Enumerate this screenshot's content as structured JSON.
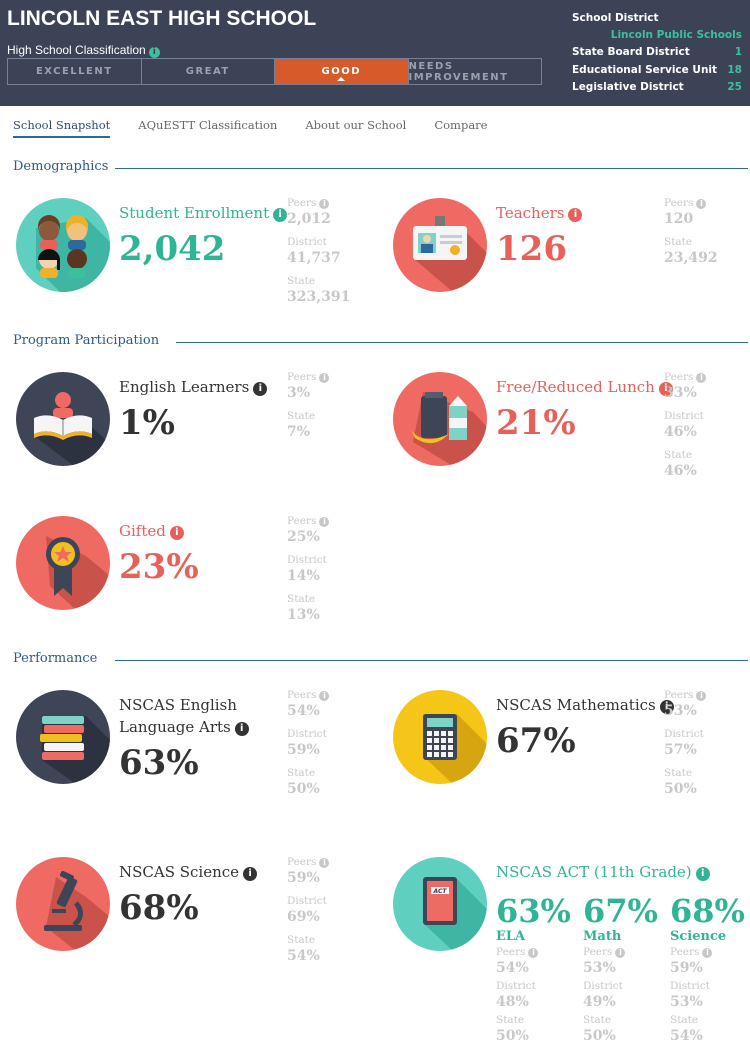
{
  "header": {
    "school_name": "LINCOLN EAST HIGH SCHOOL",
    "classification_label": "High School Classification",
    "classification_levels": [
      "EXCELLENT",
      "GREAT",
      "GOOD",
      "NEEDS IMPROVEMENT"
    ],
    "classification_selected": "GOOD",
    "district_info": [
      {
        "label": "School District",
        "value": ""
      },
      {
        "label": "",
        "value": "Lincoln Public Schools"
      },
      {
        "label": "State Board District",
        "value": "1"
      },
      {
        "label": "Educational Service Unit",
        "value": "18"
      },
      {
        "label": "Legislative District",
        "value": "25"
      }
    ]
  },
  "tabs": [
    "School Snapshot",
    "AQuESTT Classification",
    "About our School",
    "Compare"
  ],
  "active_tab": "School Snapshot",
  "sections": {
    "demographics": "Demographics",
    "program": "Program Participation",
    "performance": "Performance"
  },
  "info_glyph": "i",
  "colors": {
    "teal": "#2fb596",
    "red": "#e8605a",
    "dark": "#333333",
    "header_bg": "#3c4356",
    "good": "#d75a2a"
  },
  "stats": {
    "enrollment": {
      "label": "Student Enrollment",
      "value": "2,042",
      "cmp": [
        {
          "k": "Peers",
          "v": "2,012"
        },
        {
          "k": "District",
          "v": "41,737"
        },
        {
          "k": "State",
          "v": "323,391"
        }
      ]
    },
    "teachers": {
      "label": "Teachers",
      "value": "126",
      "cmp": [
        {
          "k": "Peers",
          "v": "120"
        },
        {
          "k": "State",
          "v": "23,492"
        }
      ]
    },
    "ell": {
      "label": "English Learners",
      "value": "1%",
      "cmp": [
        {
          "k": "Peers",
          "v": "3%"
        },
        {
          "k": "State",
          "v": "7%"
        }
      ]
    },
    "lunch": {
      "label": "Free/Reduced Lunch",
      "value": "21%",
      "cmp": [
        {
          "k": "Peers",
          "v": "33%"
        },
        {
          "k": "District",
          "v": "46%"
        },
        {
          "k": "State",
          "v": "46%"
        }
      ]
    },
    "gifted": {
      "label": "Gifted",
      "value": "23%",
      "cmp": [
        {
          "k": "Peers",
          "v": "25%"
        },
        {
          "k": "District",
          "v": "14%"
        },
        {
          "k": "State",
          "v": "13%"
        }
      ]
    },
    "ela": {
      "label_line1": "NSCAS English",
      "label_line2": "Language Arts",
      "value": "63%",
      "cmp": [
        {
          "k": "Peers",
          "v": "54%"
        },
        {
          "k": "District",
          "v": "59%"
        },
        {
          "k": "State",
          "v": "50%"
        }
      ]
    },
    "math": {
      "label": "NSCAS Mathematics",
      "value": "67%",
      "cmp": [
        {
          "k": "Peers",
          "v": "53%"
        },
        {
          "k": "District",
          "v": "57%"
        },
        {
          "k": "State",
          "v": "50%"
        }
      ]
    },
    "science": {
      "label": "NSCAS Science",
      "value": "68%",
      "cmp": [
        {
          "k": "Peers",
          "v": "59%"
        },
        {
          "k": "District",
          "v": "69%"
        },
        {
          "k": "State",
          "v": "54%"
        }
      ]
    },
    "act": {
      "label": "NSCAS ACT (11th Grade)",
      "icon_text": "ACT",
      "cols": [
        {
          "value": "63%",
          "sub": "ELA",
          "cmp": [
            {
              "k": "Peers",
              "v": "54%"
            },
            {
              "k": "District",
              "v": "48%"
            },
            {
              "k": "State",
              "v": "50%"
            }
          ]
        },
        {
          "value": "67%",
          "sub": "Math",
          "cmp": [
            {
              "k": "Peers",
              "v": "53%"
            },
            {
              "k": "District",
              "v": "49%"
            },
            {
              "k": "State",
              "v": "50%"
            }
          ]
        },
        {
          "value": "68%",
          "sub": "Science",
          "cmp": [
            {
              "k": "Peers",
              "v": "59%"
            },
            {
              "k": "District",
              "v": "53%"
            },
            {
              "k": "State",
              "v": "54%"
            }
          ]
        }
      ]
    }
  }
}
